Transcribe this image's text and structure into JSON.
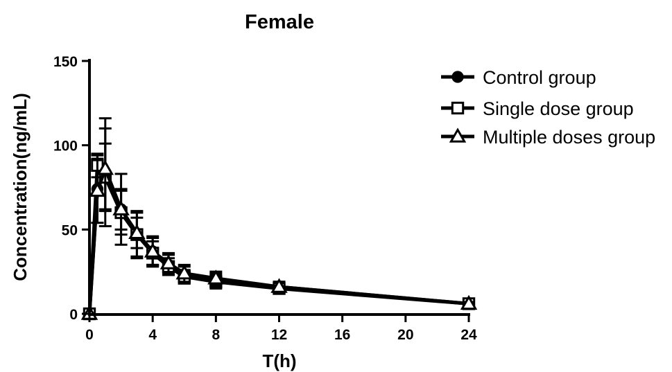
{
  "chart_data": {
    "type": "line",
    "title": "Female",
    "xlabel": "T(h)",
    "ylabel": "Concentration(ng/mL)",
    "xlim": [
      0,
      24
    ],
    "ylim": [
      0,
      150
    ],
    "xticks": [
      "0",
      "4",
      "8",
      "12",
      "16",
      "20",
      "24"
    ],
    "yticks": [
      "0",
      "50",
      "100",
      "150"
    ],
    "grid": false,
    "legend_position": "top-right",
    "line_color": "#000000",
    "series": [
      {
        "name": "Control group",
        "marker": "filled-circle",
        "x": [
          0,
          0.5,
          1,
          2,
          3,
          4,
          5,
          6,
          8,
          12,
          24
        ],
        "y": [
          0,
          74,
          84,
          62,
          47,
          37,
          29,
          23,
          20,
          16,
          6
        ],
        "err": [
          0,
          20,
          32,
          21,
          14,
          9,
          6,
          5,
          4,
          3,
          1
        ]
      },
      {
        "name": "Single dose  group",
        "marker": "open-square",
        "x": [
          0,
          0.5,
          1,
          2,
          3,
          4,
          5,
          6,
          8,
          12,
          24
        ],
        "y": [
          0,
          88,
          81,
          60,
          47,
          36,
          28,
          22,
          19,
          15,
          6
        ],
        "err": [
          0,
          7,
          20,
          13,
          13,
          7,
          5,
          4,
          4,
          3,
          1
        ]
      },
      {
        "name": "Multiple doses group",
        "marker": "open-triangle",
        "x": [
          0,
          0.5,
          1,
          2,
          3,
          4,
          5,
          6,
          8,
          12,
          24
        ],
        "y": [
          0,
          73,
          86,
          62,
          48,
          37,
          30,
          24,
          21,
          16,
          6
        ],
        "err": [
          0,
          19,
          24,
          12,
          9,
          8,
          6,
          5,
          4,
          3,
          1
        ]
      }
    ]
  }
}
